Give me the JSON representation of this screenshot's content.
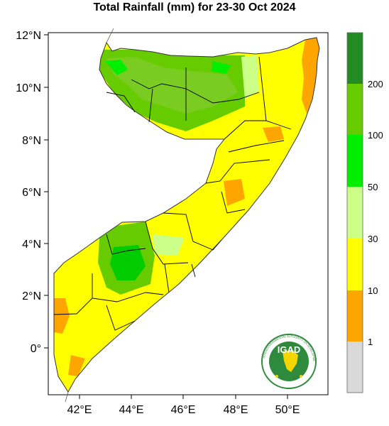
{
  "title": "Total Rainfall (mm) for 23-30 Oct 2024",
  "axes": {
    "y_ticks": [
      "12°N",
      "10°N",
      "8°N",
      "6°N",
      "4°N",
      "2°N",
      "0°"
    ],
    "x_ticks": [
      "42°E",
      "44°E",
      "46°E",
      "48°E",
      "50°E"
    ]
  },
  "colorbar": {
    "labels": [
      "200",
      "100",
      "50",
      "30",
      "10",
      "1"
    ],
    "colors": [
      "#228B22",
      "#66CC00",
      "#00EE00",
      "#CCFF88",
      "#FFFF00",
      "#FFA500",
      "#D9D9D9"
    ]
  },
  "logo": {
    "text": "IGAD",
    "ring_text": "INTERGOVERNMENTAL AUTHORITY ON DEVELOPMENT",
    "color": "#2e8b3d"
  }
}
